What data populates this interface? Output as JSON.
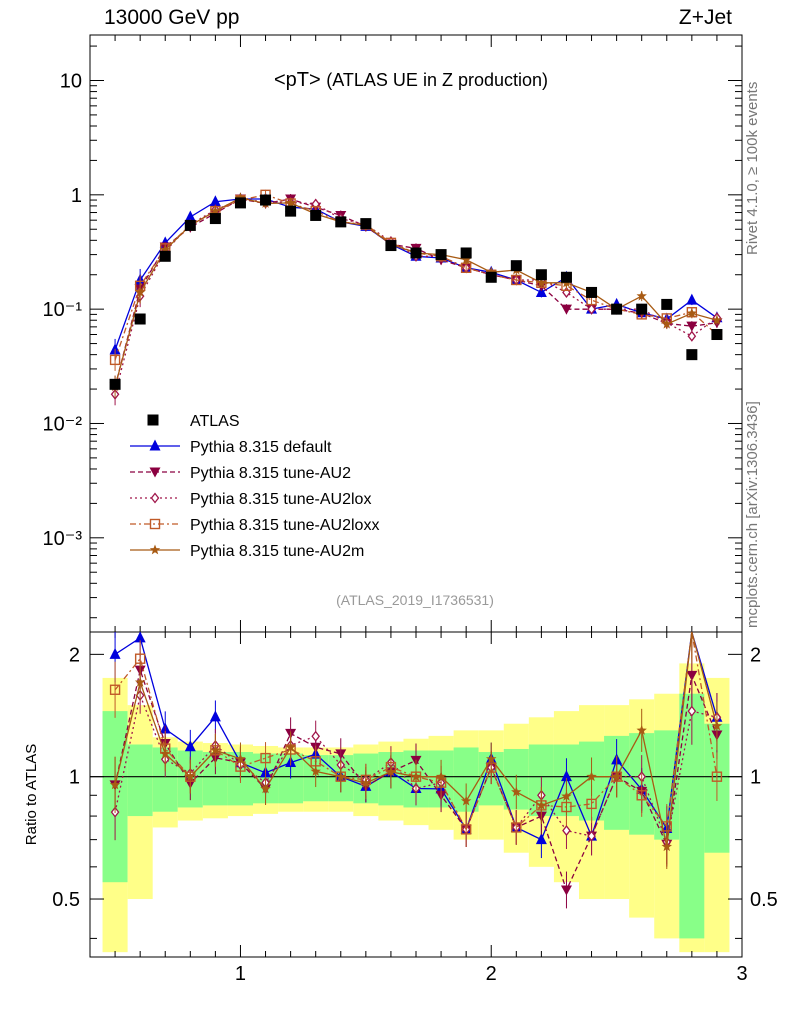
{
  "header": {
    "left": "13000 GeV pp",
    "right": "Z+Jet"
  },
  "side_labels": {
    "rivet": "Rivet 4.1.0, ≥ 100k events",
    "mcplots": "mcplots.cern.ch [arXiv:1306.3436]"
  },
  "chart_data": {
    "type": "line",
    "title": "<pT>",
    "title_suffix": "(ATLAS UE in Z production)",
    "analysis_id": "(ATLAS_2019_I1736531)",
    "x_range": [
      0.4,
      3.0
    ],
    "x_ticks": [
      "1",
      "2",
      "3"
    ],
    "x": [
      0.5,
      0.6,
      0.7,
      0.8,
      0.9,
      1.0,
      1.1,
      1.2,
      1.3,
      1.4,
      1.5,
      1.6,
      1.7,
      1.8,
      1.9,
      2.0,
      2.1,
      2.2,
      2.3,
      2.4,
      2.5,
      2.6,
      2.7,
      2.8,
      2.9
    ],
    "main": {
      "yscale": "log",
      "ylim": [
        0.00015,
        25
      ],
      "y_tick_labels": [
        "10",
        "1",
        "10⁻¹",
        "10⁻²",
        "10⁻³"
      ],
      "y_tick_values": [
        10,
        1,
        0.1,
        0.01,
        0.001
      ]
    },
    "ratio": {
      "ylabel": "Ratio to ATLAS",
      "ylim": [
        0.36,
        2.27
      ],
      "y_tick_labels": [
        "0.5",
        "1",
        "2"
      ],
      "y_tick_values": [
        0.5,
        1,
        2
      ]
    },
    "data": {
      "name": "ATLAS",
      "color": "#000000",
      "values": [
        0.022,
        0.082,
        0.29,
        0.54,
        0.62,
        0.85,
        0.9,
        0.72,
        0.66,
        0.58,
        0.56,
        0.36,
        0.31,
        0.3,
        0.31,
        0.19,
        0.24,
        0.2,
        0.19,
        0.14,
        0.1,
        0.1,
        0.11,
        0.04,
        0.06
      ],
      "band_inner": [
        0.45,
        0.2,
        0.18,
        0.16,
        0.15,
        0.15,
        0.14,
        0.14,
        0.13,
        0.13,
        0.14,
        0.15,
        0.16,
        0.16,
        0.18,
        0.15,
        0.17,
        0.2,
        0.2,
        0.22,
        0.26,
        0.28,
        0.3,
        0.6,
        0.35
      ],
      "band_outer": [
        0.75,
        0.5,
        0.25,
        0.22,
        0.21,
        0.2,
        0.19,
        0.18,
        0.18,
        0.18,
        0.2,
        0.22,
        0.24,
        0.26,
        0.3,
        0.3,
        0.35,
        0.4,
        0.45,
        0.5,
        0.5,
        0.55,
        0.6,
        0.9,
        0.75
      ]
    },
    "series": [
      {
        "name": "Pythia 8.315 default",
        "color": "#0000dd",
        "dash": "",
        "marker": "triangle-up",
        "values": [
          0.044,
          0.18,
          0.38,
          0.64,
          0.87,
          0.92,
          0.92,
          0.78,
          0.75,
          0.58,
          0.53,
          0.37,
          0.29,
          0.28,
          0.23,
          0.21,
          0.18,
          0.14,
          0.19,
          0.1,
          0.11,
          0.093,
          0.082,
          0.12,
          0.084
        ]
      },
      {
        "name": "Pythia 8.315 tune-AU2",
        "color": "#8b0040",
        "dash": "5,3",
        "marker": "triangle-down",
        "values": [
          0.021,
          0.15,
          0.35,
          0.52,
          0.69,
          0.92,
          0.84,
          0.92,
          0.78,
          0.66,
          0.53,
          0.37,
          0.34,
          0.27,
          0.23,
          0.2,
          0.18,
          0.16,
          0.1,
          0.1,
          0.1,
          0.092,
          0.075,
          0.071,
          0.076
        ]
      },
      {
        "name": "Pythia 8.315 tune-AU2lox",
        "color": "#a0164b",
        "dash": "2,3",
        "marker": "diamond",
        "values": [
          0.018,
          0.13,
          0.32,
          0.55,
          0.74,
          0.91,
          0.87,
          0.86,
          0.83,
          0.62,
          0.55,
          0.39,
          0.29,
          0.29,
          0.23,
          0.2,
          0.18,
          0.18,
          0.14,
          0.1,
          0.1,
          0.1,
          0.076,
          0.058,
          0.084
        ]
      },
      {
        "name": "Pythia 8.315 tune-AU2loxx",
        "color": "#c05a28",
        "dash": "6,3,2,3",
        "marker": "square-open",
        "values": [
          0.036,
          0.16,
          0.34,
          0.54,
          0.72,
          0.9,
          1.0,
          0.84,
          0.72,
          0.58,
          0.55,
          0.38,
          0.31,
          0.29,
          0.23,
          0.2,
          0.18,
          0.17,
          0.16,
          0.12,
          0.1,
          0.09,
          0.083,
          0.094,
          0.06
        ]
      },
      {
        "name": "Pythia 8.315 tune-AU2m",
        "color": "#a85b14",
        "dash": "",
        "marker": "star",
        "values": [
          0.021,
          0.14,
          0.33,
          0.54,
          0.72,
          0.94,
          0.84,
          0.85,
          0.68,
          0.58,
          0.54,
          0.37,
          0.31,
          0.3,
          0.27,
          0.21,
          0.22,
          0.17,
          0.17,
          0.14,
          0.1,
          0.13,
          0.074,
          0.092,
          0.08
        ]
      }
    ]
  }
}
